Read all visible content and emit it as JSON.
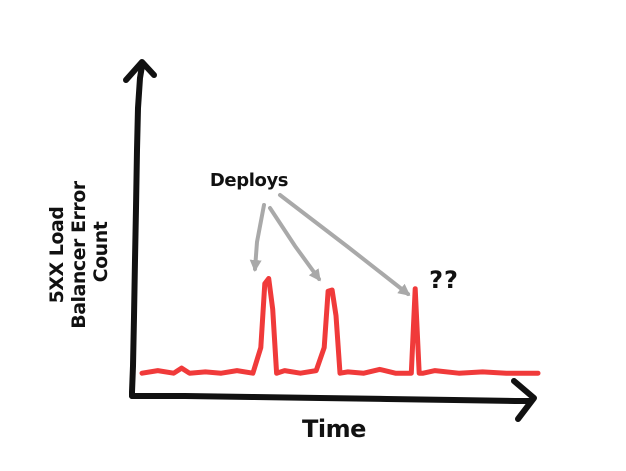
{
  "chart_data": {
    "type": "line",
    "title": "",
    "xlabel": "Time",
    "ylabel_lines": [
      "5XX Load",
      "Balancer Error",
      "Count"
    ],
    "grid": false,
    "legend": "none",
    "series": [
      {
        "color": "#f03a3a",
        "x": [
          0,
          4,
          8,
          10,
          12,
          16,
          20,
          24,
          28,
          30,
          31,
          32,
          33,
          34,
          36,
          40,
          44,
          46,
          47,
          48,
          49,
          50,
          52,
          56,
          60,
          64,
          68,
          69,
          70,
          71,
          74,
          80,
          86,
          92,
          100
        ],
        "y": [
          1.0,
          1.2,
          1.0,
          1.4,
          1.0,
          1.1,
          1.0,
          1.2,
          1.0,
          3.0,
          8.0,
          8.4,
          6.0,
          1.0,
          1.2,
          1.0,
          1.2,
          3.0,
          7.4,
          7.5,
          5.5,
          1.0,
          1.1,
          1.0,
          1.3,
          1.0,
          1.0,
          7.6,
          1.0,
          1.0,
          1.2,
          1.0,
          1.1,
          1.0,
          1.0
        ]
      }
    ],
    "annotations": [
      {
        "text": "Deploys",
        "targets_x": [
          31.5,
          48,
          69
        ]
      },
      {
        "text": "??"
      }
    ],
    "xlim": [
      0,
      100
    ],
    "ylim": [
      0,
      25
    ]
  }
}
